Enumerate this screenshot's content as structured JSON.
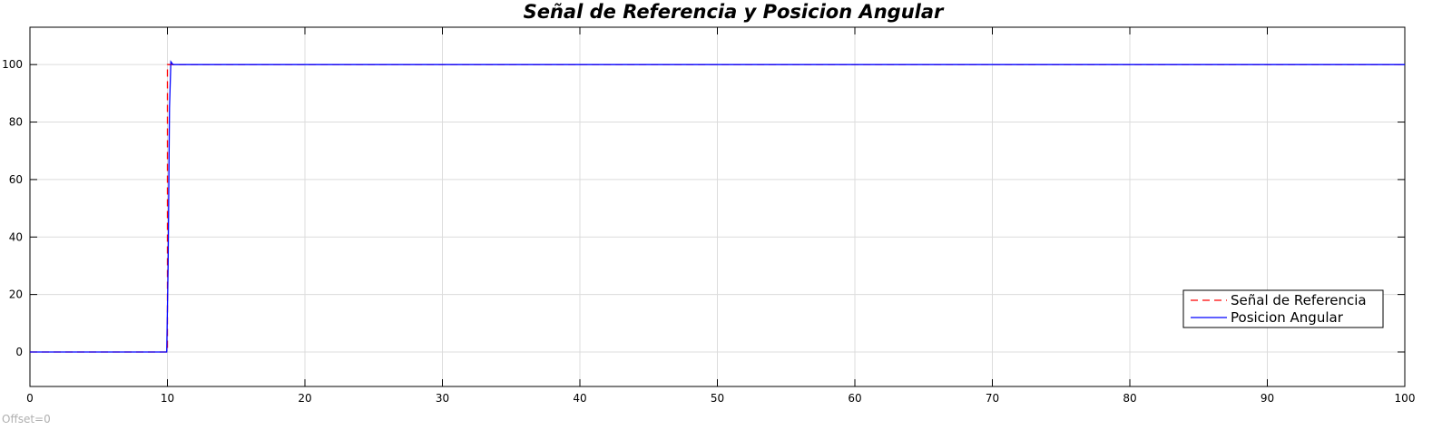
{
  "chart_data": {
    "type": "line",
    "title": "Señal de Referencia y Posicion Angular",
    "xlabel": "",
    "ylabel": "",
    "xlim": [
      0,
      100
    ],
    "ylim": [
      -12,
      113
    ],
    "xticks": [
      0,
      10,
      20,
      30,
      40,
      50,
      60,
      70,
      80,
      90,
      100
    ],
    "yticks": [
      0,
      20,
      40,
      60,
      80,
      100
    ],
    "grid": true,
    "legend_position": "bottom-right",
    "series": [
      {
        "name": "Señal de Referencia",
        "color": "#ff0000",
        "style": "dashed",
        "x": [
          0,
          10,
          10,
          100
        ],
        "y": [
          0,
          0,
          100,
          100
        ]
      },
      {
        "name": "Posicion Angular",
        "color": "#0000ff",
        "style": "solid",
        "x": [
          0,
          9.95,
          10.05,
          10.15,
          10.25,
          10.4,
          100
        ],
        "y": [
          0,
          0,
          30,
          85,
          101,
          100,
          100
        ]
      }
    ]
  },
  "footer": {
    "offset_label": "Offset=0"
  }
}
